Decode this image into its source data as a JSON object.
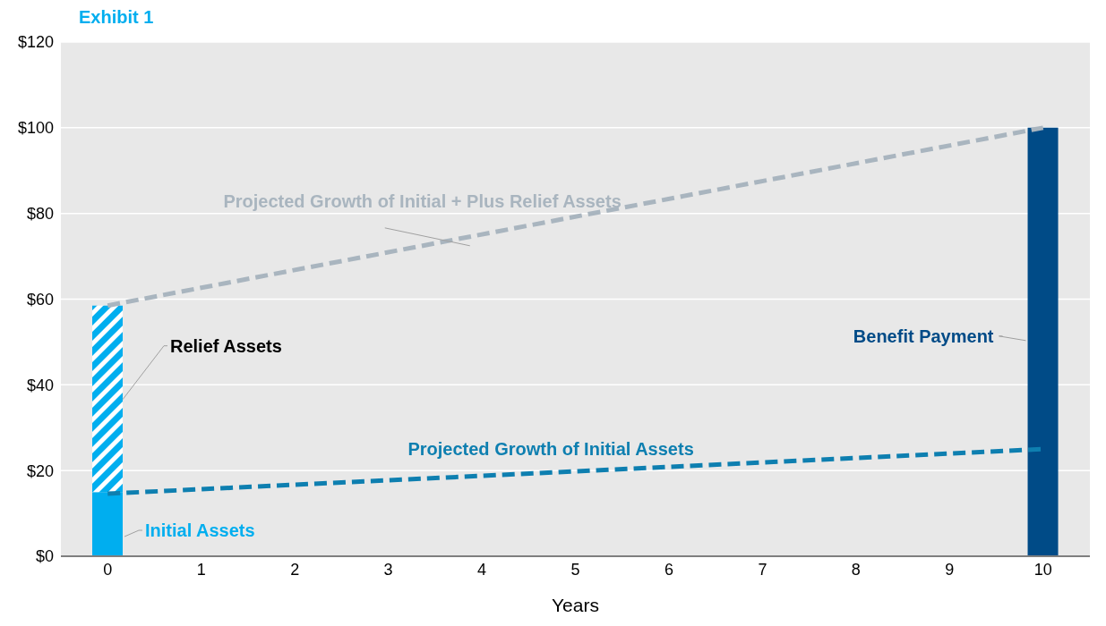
{
  "chart_data": {
    "type": "bar",
    "title": "Exhibit 1",
    "xlabel": "Years",
    "categories": [
      "0",
      "1",
      "2",
      "3",
      "4",
      "5",
      "6",
      "7",
      "8",
      "9",
      "10"
    ],
    "stacked": true,
    "series": [
      {
        "name": "Initial Assets",
        "color": "#00aeef",
        "values": [
          15,
          null,
          null,
          null,
          null,
          null,
          null,
          null,
          null,
          null,
          null
        ]
      },
      {
        "name": "Relief Assets",
        "color": "#00aeef",
        "values": [
          43.5,
          null,
          null,
          null,
          null,
          null,
          null,
          null,
          null,
          null,
          null
        ]
      },
      {
        "name": "Benefit Payment",
        "color": "#004b87",
        "values": [
          null,
          null,
          null,
          null,
          null,
          null,
          null,
          null,
          null,
          null,
          100
        ]
      },
      {
        "name": "Projected Growth of Initial + Plus Relief Assets",
        "type": "line",
        "line_style": "dashed",
        "color": "#a9b5bf",
        "values": [
          58.5,
          null,
          null,
          null,
          null,
          null,
          null,
          null,
          null,
          null,
          100
        ]
      },
      {
        "name": "Projected Growth of Initial Assets",
        "type": "line",
        "line_style": "dashed",
        "color": "#0e7fb0",
        "values": [
          14.6,
          null,
          null,
          null,
          null,
          null,
          null,
          null,
          null,
          null,
          25
        ]
      }
    ],
    "ylim": [
      0,
      120
    ],
    "yticks": [
      {
        "value": 0,
        "label": "$0"
      },
      {
        "value": 20,
        "label": "$20"
      },
      {
        "value": 40,
        "label": "$40"
      },
      {
        "value": 60,
        "label": "$60"
      },
      {
        "value": 80,
        "label": "$80"
      },
      {
        "value": 100,
        "label": "$100"
      },
      {
        "value": 120,
        "label": "$120"
      }
    ],
    "grid": "y",
    "legend": false,
    "marker": "none"
  }
}
